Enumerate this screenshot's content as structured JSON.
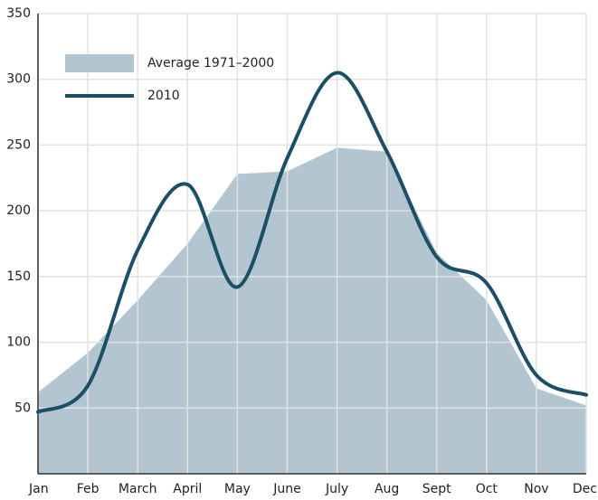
{
  "chart_data": {
    "type": "line",
    "categories": [
      "Jan",
      "Feb",
      "March",
      "April",
      "May",
      "June",
      "July",
      "Aug",
      "Sept",
      "Oct",
      "Nov",
      "Dec"
    ],
    "series": [
      {
        "name": "Average 1971–2000",
        "type": "area",
        "color": "#b3c5d1",
        "values": [
          62,
          92,
          132,
          175,
          228,
          230,
          248,
          245,
          168,
          132,
          65,
          52
        ]
      },
      {
        "name": "2010",
        "type": "line",
        "color": "#1b4f66",
        "values": [
          47,
          67,
          170,
          220,
          142,
          240,
          305,
          245,
          165,
          145,
          75,
          60
        ]
      }
    ],
    "ylim": [
      0,
      350
    ],
    "yticks": [
      50,
      100,
      150,
      200,
      250,
      300,
      350
    ],
    "grid": true,
    "legend": "top-left"
  }
}
